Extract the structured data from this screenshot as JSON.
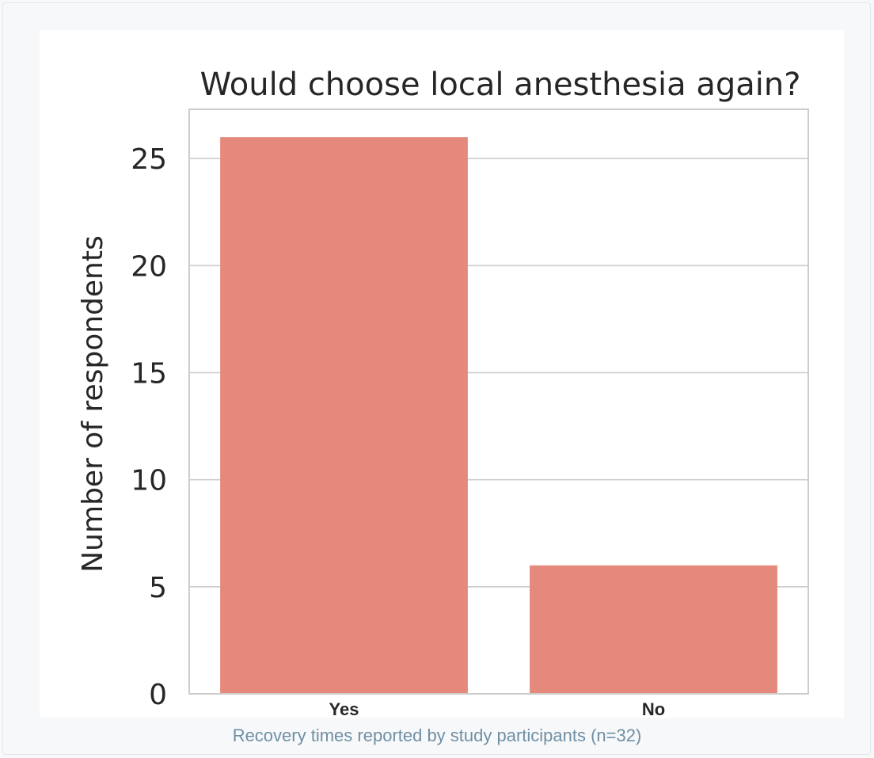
{
  "chart_data": {
    "type": "bar",
    "title": "Would choose local anesthesia again?",
    "xlabel": "",
    "ylabel": "Number of respondents",
    "categories": [
      "Yes",
      "No"
    ],
    "values": [
      26,
      6
    ],
    "ylim": [
      0,
      27.3
    ],
    "yticks": [
      0,
      5,
      10,
      15,
      20,
      25
    ],
    "grid": "y",
    "bar_color": "#e5897c"
  },
  "caption": "Recovery times reported by study participants (n=32)"
}
